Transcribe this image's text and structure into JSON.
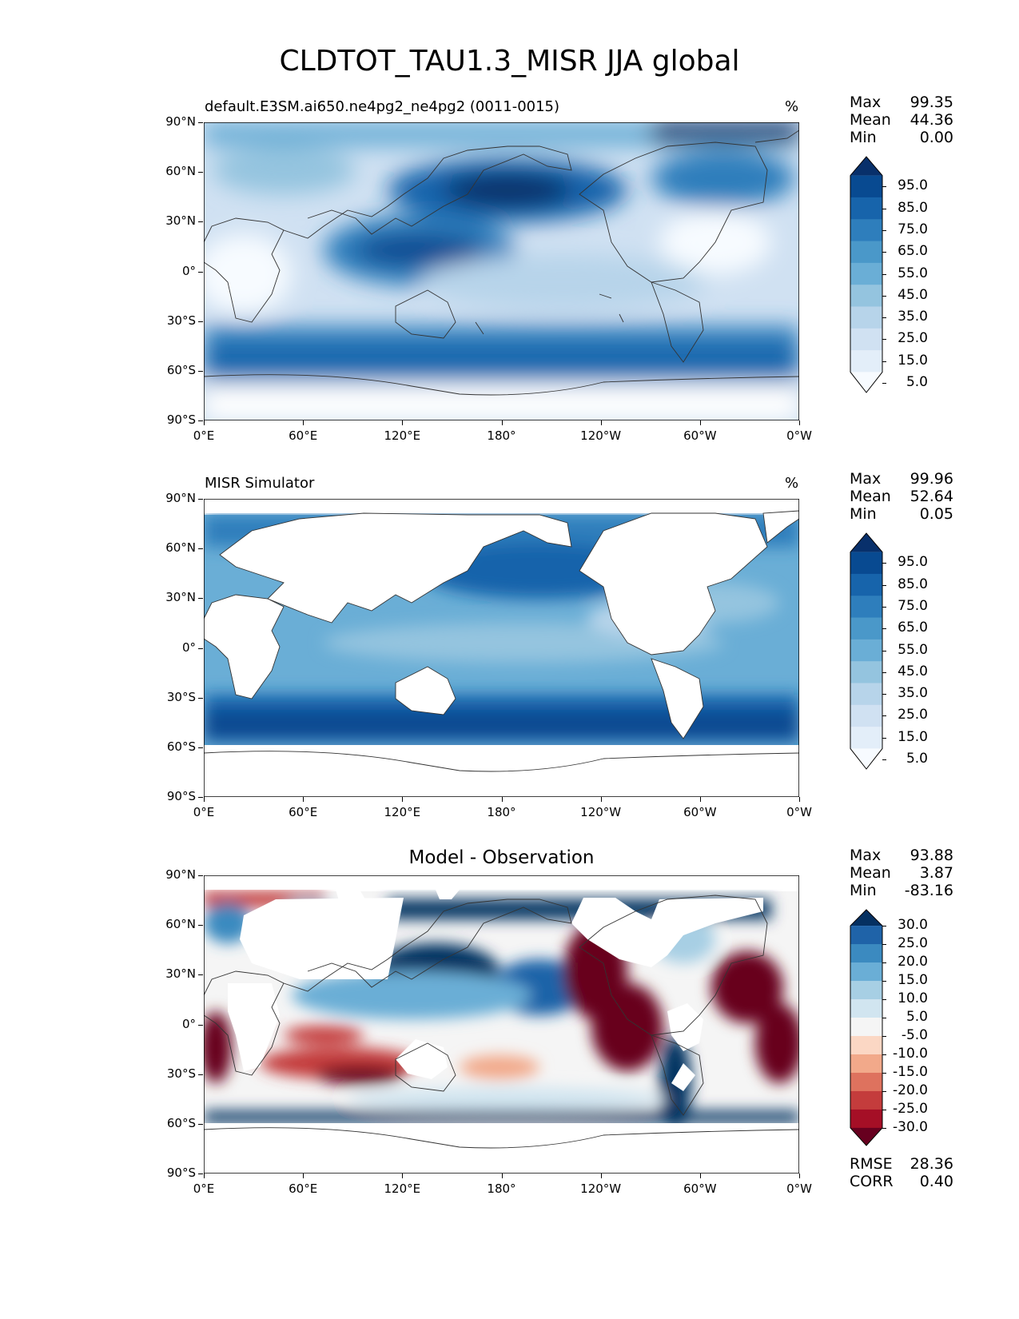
{
  "title": "CLDTOT_TAU1.3_MISR JJA global",
  "axes": {
    "lat_ticks": [
      "90°N",
      "60°N",
      "30°N",
      "0°",
      "30°S",
      "60°S",
      "90°S"
    ],
    "lon_ticks": [
      "0°E",
      "60°E",
      "120°E",
      "180°",
      "120°W",
      "60°W",
      "0°W"
    ]
  },
  "colors": {
    "blues": [
      "#f7fbff",
      "#e3eef9",
      "#d0e1f2",
      "#b7d4ea",
      "#94c4df",
      "#6aaed6",
      "#4a98c9",
      "#2e7ebc",
      "#1764ab",
      "#084a91",
      "#08306b"
    ],
    "diverging": [
      "#67001f",
      "#a50f26",
      "#c43c3c",
      "#de725e",
      "#f2a98a",
      "#fbd7c4",
      "#f5f5f5",
      "#d1e5f0",
      "#a7cfe4",
      "#6aaed6",
      "#3b8ac0",
      "#1f63a8",
      "#053061"
    ],
    "land": "#ffffff",
    "coast": "#333333"
  },
  "panels": [
    {
      "id": "test",
      "title_left": "default.E3SM.ai650.ne4pg2_ne4pg2 (0011-0015)",
      "title_center": "",
      "units": "%",
      "stats": [
        {
          "label": "Max",
          "value": "99.35"
        },
        {
          "label": "Mean",
          "value": "44.36"
        },
        {
          "label": "Min",
          "value": "0.00"
        }
      ],
      "colorbar": {
        "type": "blues",
        "labels": [
          "95.0",
          "85.0",
          "75.0",
          "65.0",
          "55.0",
          "45.0",
          "35.0",
          "25.0",
          "15.0",
          "5.0"
        ]
      }
    },
    {
      "id": "reference",
      "title_left": "MISR Simulator",
      "title_center": "",
      "units": "%",
      "stats": [
        {
          "label": "Max",
          "value": "99.96"
        },
        {
          "label": "Mean",
          "value": "52.64"
        },
        {
          "label": "Min",
          "value": "0.05"
        }
      ],
      "colorbar": {
        "type": "blues",
        "labels": [
          "95.0",
          "85.0",
          "75.0",
          "65.0",
          "55.0",
          "45.0",
          "35.0",
          "25.0",
          "15.0",
          "5.0"
        ]
      }
    },
    {
      "id": "difference",
      "title_left": "",
      "title_center": "Model - Observation",
      "units": "",
      "stats": [
        {
          "label": "Max",
          "value": "93.88"
        },
        {
          "label": "Mean",
          "value": "3.87"
        },
        {
          "label": "Min",
          "value": "-83.16"
        }
      ],
      "colorbar": {
        "type": "diverging",
        "labels": [
          "30.0",
          "25.0",
          "20.0",
          "15.0",
          "10.0",
          "5.0",
          "-5.0",
          "-10.0",
          "-15.0",
          "-20.0",
          "-25.0",
          "-30.0"
        ]
      },
      "metrics": [
        {
          "label": "RMSE",
          "value": "28.36"
        },
        {
          "label": "CORR",
          "value": "0.40"
        }
      ]
    }
  ]
}
